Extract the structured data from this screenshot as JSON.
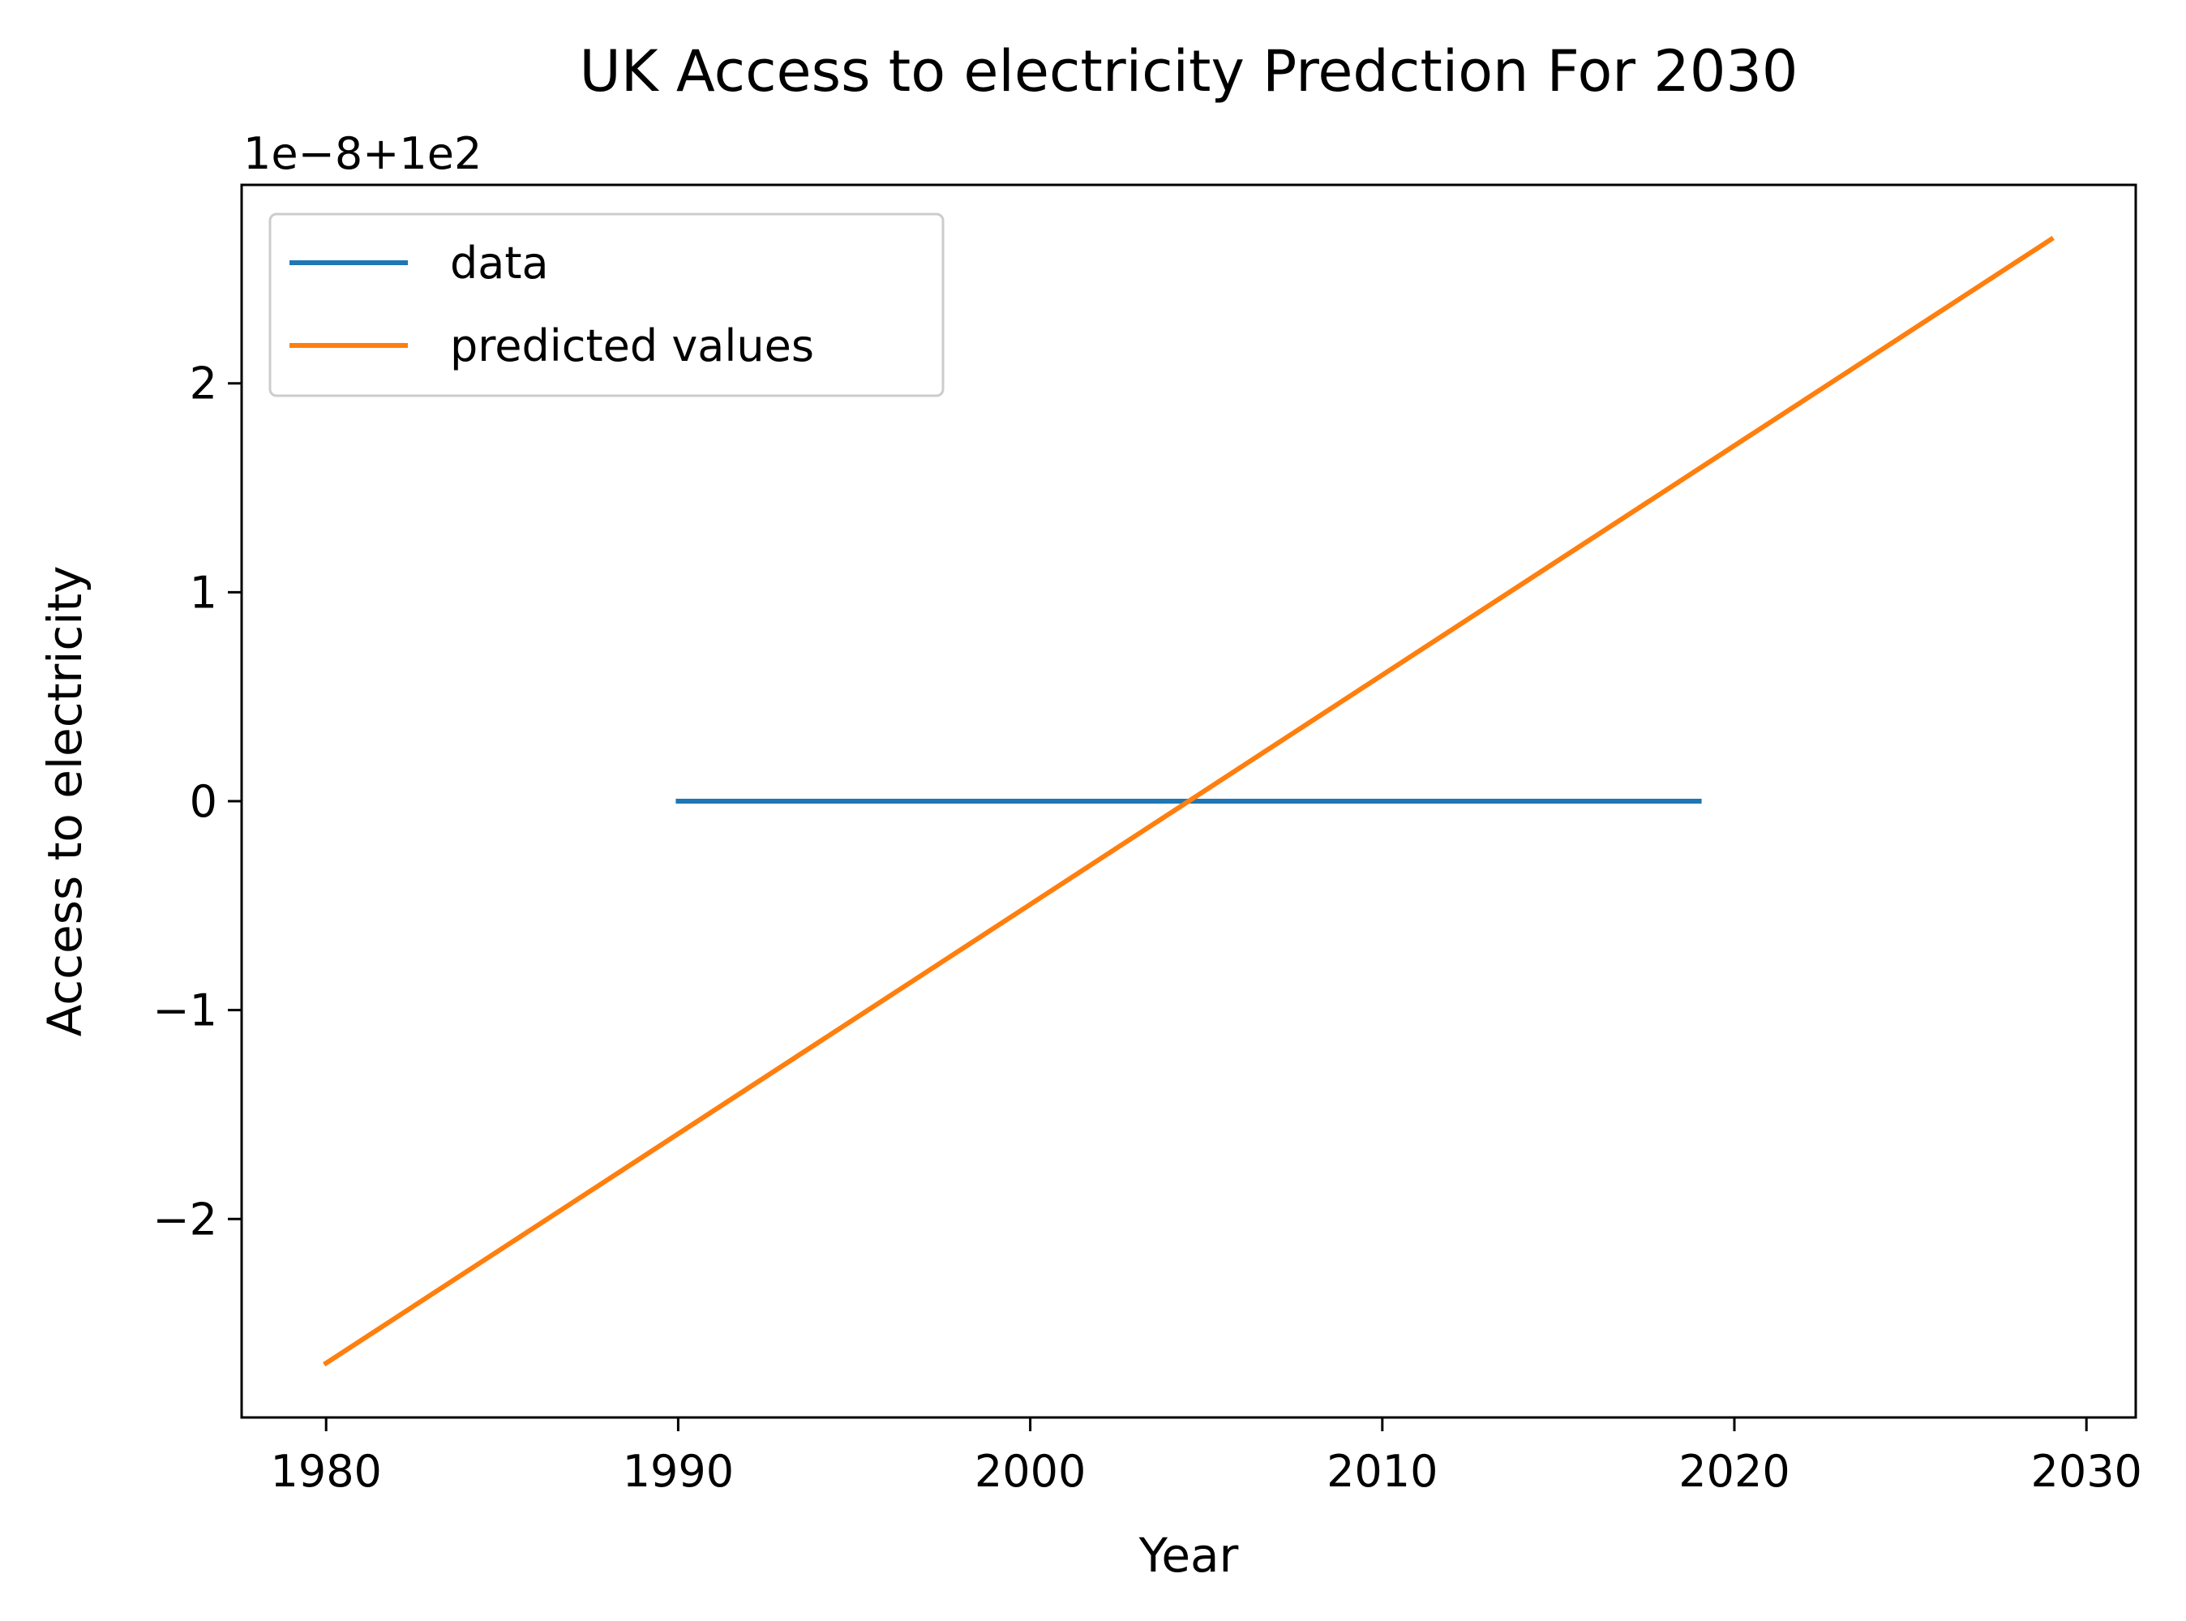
{
  "chart_data": {
    "type": "line",
    "title": "UK Access to electricity Predction For 2030",
    "xlabel": "Year",
    "ylabel": "Access to electricity",
    "y_offset_text": "1e−8+1e2",
    "xlim": [
      1977.6,
      2031.4
    ],
    "ylim": [
      -2.95,
      2.95
    ],
    "x_ticks": [
      1980,
      1990,
      2000,
      2010,
      2020,
      2030
    ],
    "x_tick_labels": [
      "1980",
      "1990",
      "2000",
      "2010",
      "2020",
      "2030"
    ],
    "y_ticks": [
      -2,
      -1,
      0,
      1,
      2
    ],
    "y_tick_labels": [
      "−2",
      "−1",
      "0",
      "1",
      "2"
    ],
    "grid": false,
    "legend_position": "upper-left",
    "series": [
      {
        "name": "data",
        "color": "#1f77b4",
        "x": [
          1990,
          2019
        ],
        "y": [
          0,
          0
        ]
      },
      {
        "name": "predicted values",
        "color": "#ff7f0e",
        "x": [
          1980,
          2029
        ],
        "y": [
          -2.69,
          2.69
        ]
      }
    ]
  }
}
